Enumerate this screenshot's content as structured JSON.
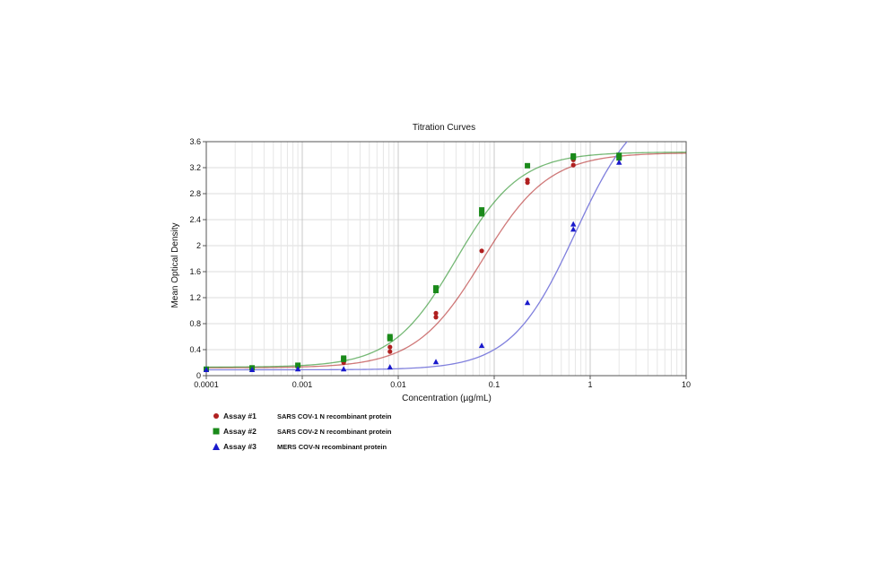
{
  "chart_data": {
    "type": "scatter",
    "title": "Titration Curves",
    "xlabel": "Concentration (µg/mL)",
    "ylabel": "Mean Optical Density",
    "xscale": "log",
    "xlim": [
      0.0001,
      10
    ],
    "ylim": [
      0,
      3.6
    ],
    "xticks": [
      "0.0001",
      "0.001",
      "0.01",
      "0.1",
      "1",
      "10"
    ],
    "yticks": [
      "0",
      "0.4",
      "0.8",
      "1.2",
      "1.6",
      "2",
      "2.4",
      "2.8",
      "3.2",
      "3.6"
    ],
    "grid": true,
    "legend_position": "bottom-left",
    "series": [
      {
        "name": "Assay #1",
        "description": "SARS COV-1 N recombinant protein",
        "color": "#b02020",
        "marker": "circle",
        "curve": {
          "bottom": 0.12,
          "top": 3.43,
          "ec50": 0.075,
          "hill": 1.25
        },
        "points": [
          {
            "x": 0.0001,
            "y": 0.1
          },
          {
            "x": 0.0003,
            "y": 0.12
          },
          {
            "x": 0.0009,
            "y": 0.14
          },
          {
            "x": 0.0027,
            "y": 0.2
          },
          {
            "x": 0.0082,
            "y": 0.37
          },
          {
            "x": 0.0082,
            "y": 0.44
          },
          {
            "x": 0.0247,
            "y": 0.9
          },
          {
            "x": 0.0247,
            "y": 0.96
          },
          {
            "x": 0.0741,
            "y": 1.92
          },
          {
            "x": 0.222,
            "y": 2.97
          },
          {
            "x": 0.222,
            "y": 3.01
          },
          {
            "x": 0.667,
            "y": 3.24
          },
          {
            "x": 0.667,
            "y": 3.32
          },
          {
            "x": 2.0,
            "y": 3.34
          },
          {
            "x": 2.0,
            "y": 3.38
          }
        ]
      },
      {
        "name": "Assay #2",
        "description": "SARS COV-2 N recombinant protein",
        "color": "#1a8a1a",
        "marker": "square",
        "curve": {
          "bottom": 0.13,
          "top": 3.44,
          "ec50": 0.04,
          "hill": 1.3
        },
        "points": [
          {
            "x": 0.0001,
            "y": 0.1
          },
          {
            "x": 0.0003,
            "y": 0.12
          },
          {
            "x": 0.0009,
            "y": 0.16
          },
          {
            "x": 0.0027,
            "y": 0.25
          },
          {
            "x": 0.0027,
            "y": 0.27
          },
          {
            "x": 0.0082,
            "y": 0.57
          },
          {
            "x": 0.0082,
            "y": 0.6
          },
          {
            "x": 0.0247,
            "y": 1.31
          },
          {
            "x": 0.0247,
            "y": 1.35
          },
          {
            "x": 0.0741,
            "y": 2.49
          },
          {
            "x": 0.0741,
            "y": 2.55
          },
          {
            "x": 0.222,
            "y": 3.23
          },
          {
            "x": 0.667,
            "y": 3.36
          },
          {
            "x": 0.667,
            "y": 3.38
          },
          {
            "x": 2.0,
            "y": 3.35
          },
          {
            "x": 2.0,
            "y": 3.39
          }
        ]
      },
      {
        "name": "Assay #3",
        "description": "MERS COV-N recombinant protein",
        "color": "#1a1acc",
        "line_color": "#8080dd",
        "marker": "triangle",
        "curve": {
          "bottom": 0.09,
          "top": 4.3,
          "ec50": 0.7,
          "hill": 1.3
        },
        "points": [
          {
            "x": 0.0001,
            "y": 0.09
          },
          {
            "x": 0.0003,
            "y": 0.09
          },
          {
            "x": 0.0009,
            "y": 0.1
          },
          {
            "x": 0.0027,
            "y": 0.1
          },
          {
            "x": 0.0082,
            "y": 0.13
          },
          {
            "x": 0.0247,
            "y": 0.21
          },
          {
            "x": 0.0741,
            "y": 0.46
          },
          {
            "x": 0.222,
            "y": 1.12
          },
          {
            "x": 0.667,
            "y": 2.25
          },
          {
            "x": 0.667,
            "y": 2.33
          },
          {
            "x": 2.0,
            "y": 3.28
          }
        ]
      }
    ]
  }
}
